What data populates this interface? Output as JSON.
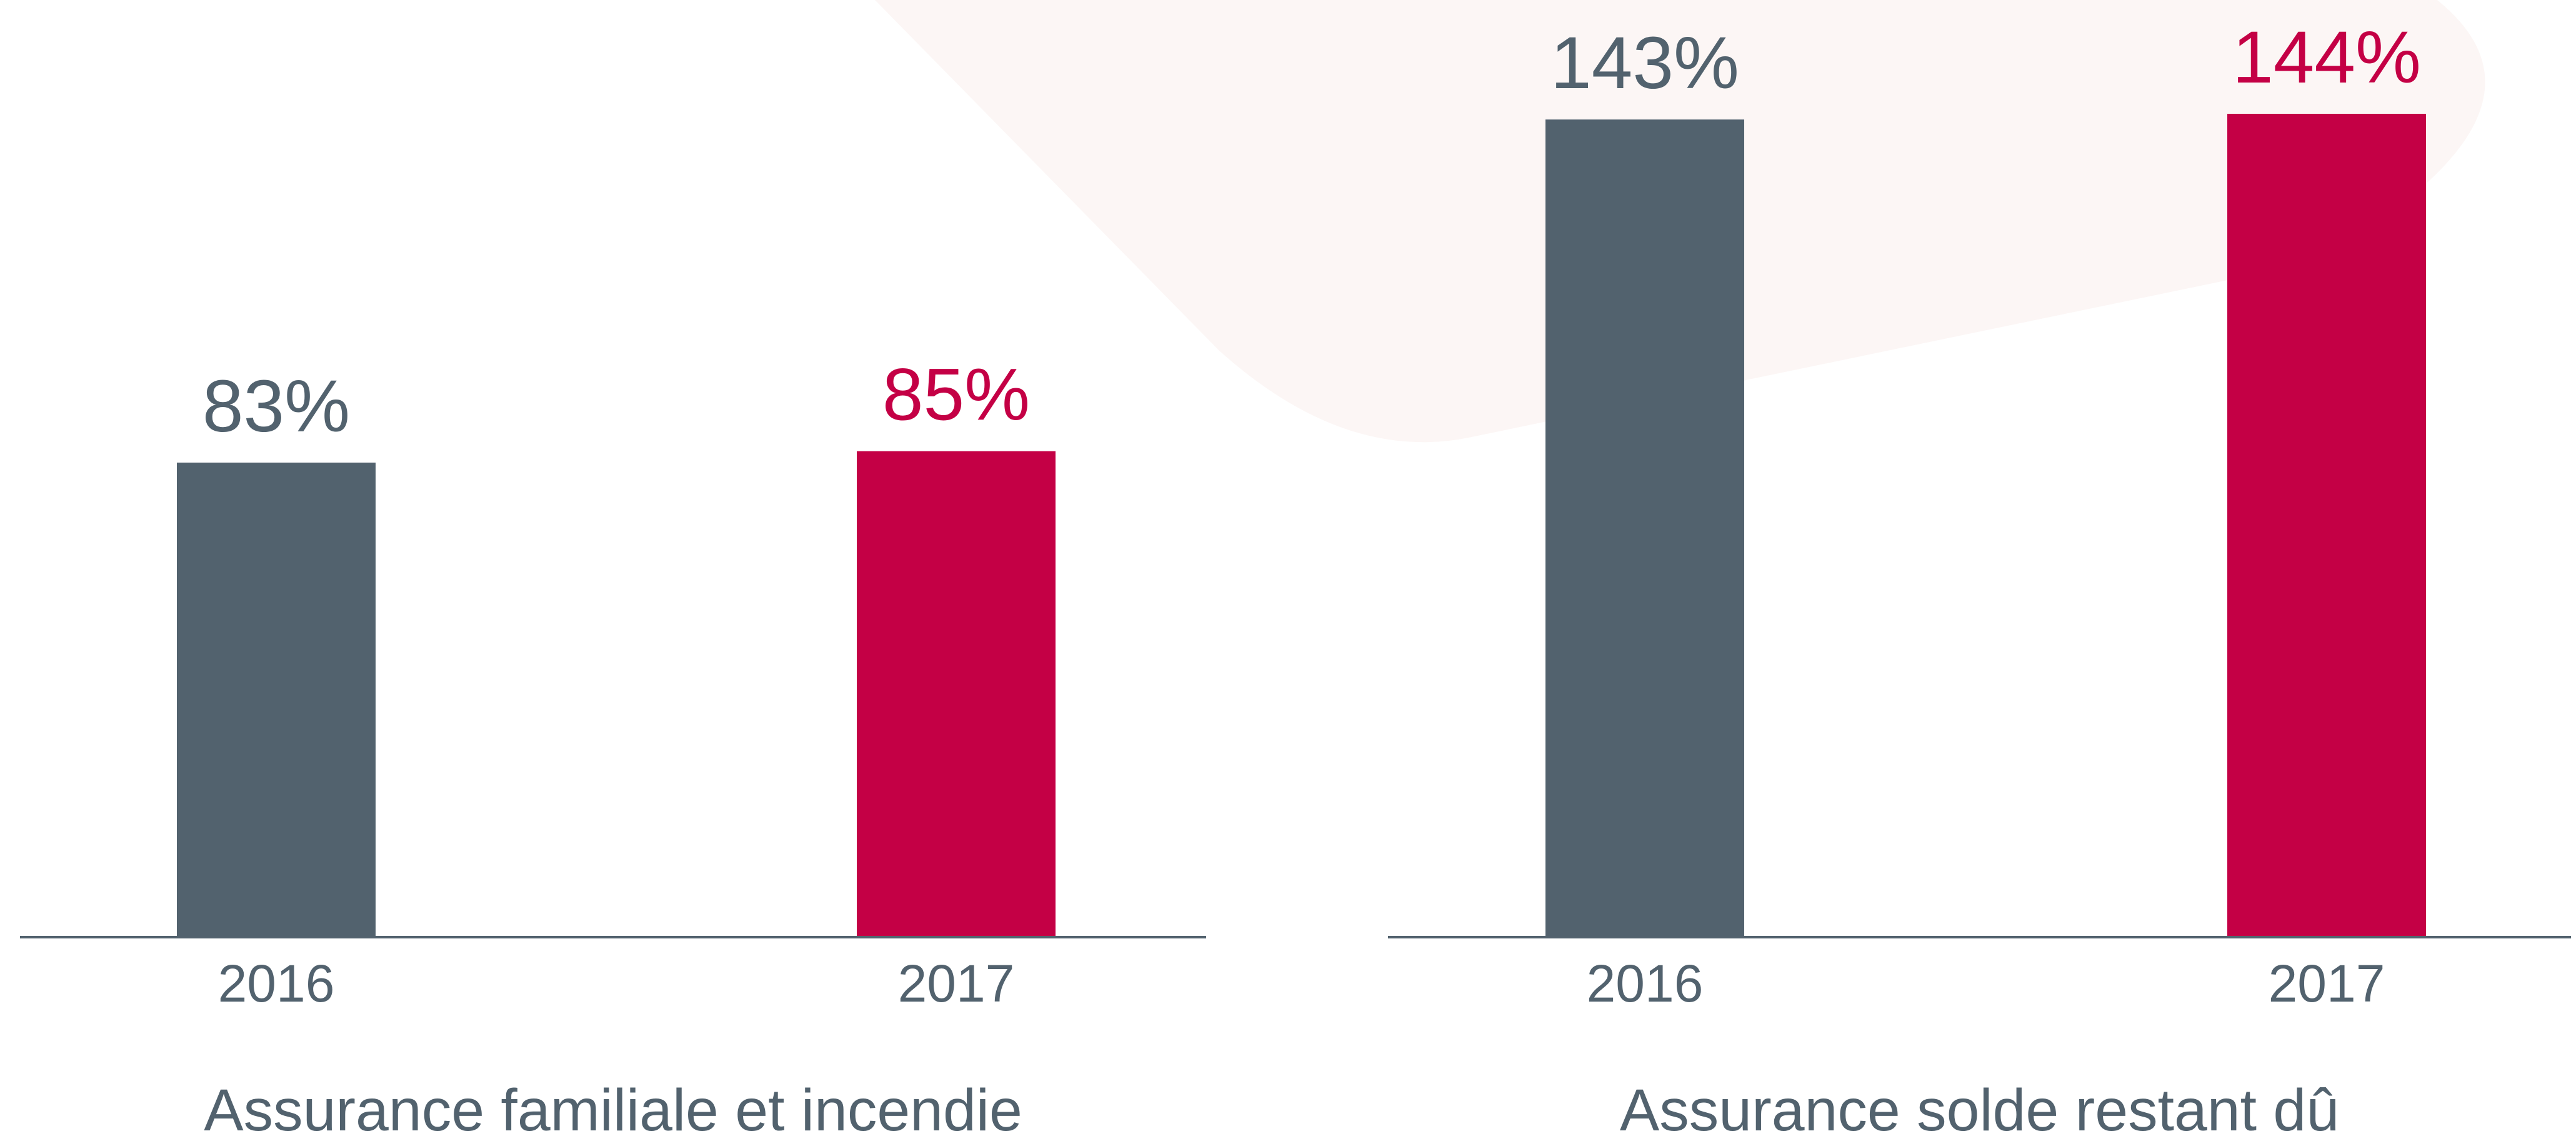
{
  "chart_data": [
    {
      "type": "bar",
      "title": "Assurance familiale et incendie",
      "categories": [
        "2016",
        "2017"
      ],
      "values": [
        83,
        85
      ],
      "value_labels": [
        "83%",
        "85%"
      ],
      "colors": [
        "#52626e",
        "#c40045"
      ]
    },
    {
      "type": "bar",
      "title": "Assurance solde restant dû",
      "categories": [
        "2016",
        "2017"
      ],
      "values": [
        143,
        144
      ],
      "value_labels": [
        "143%",
        "144%"
      ],
      "colors": [
        "#52626e",
        "#c40045"
      ]
    }
  ]
}
